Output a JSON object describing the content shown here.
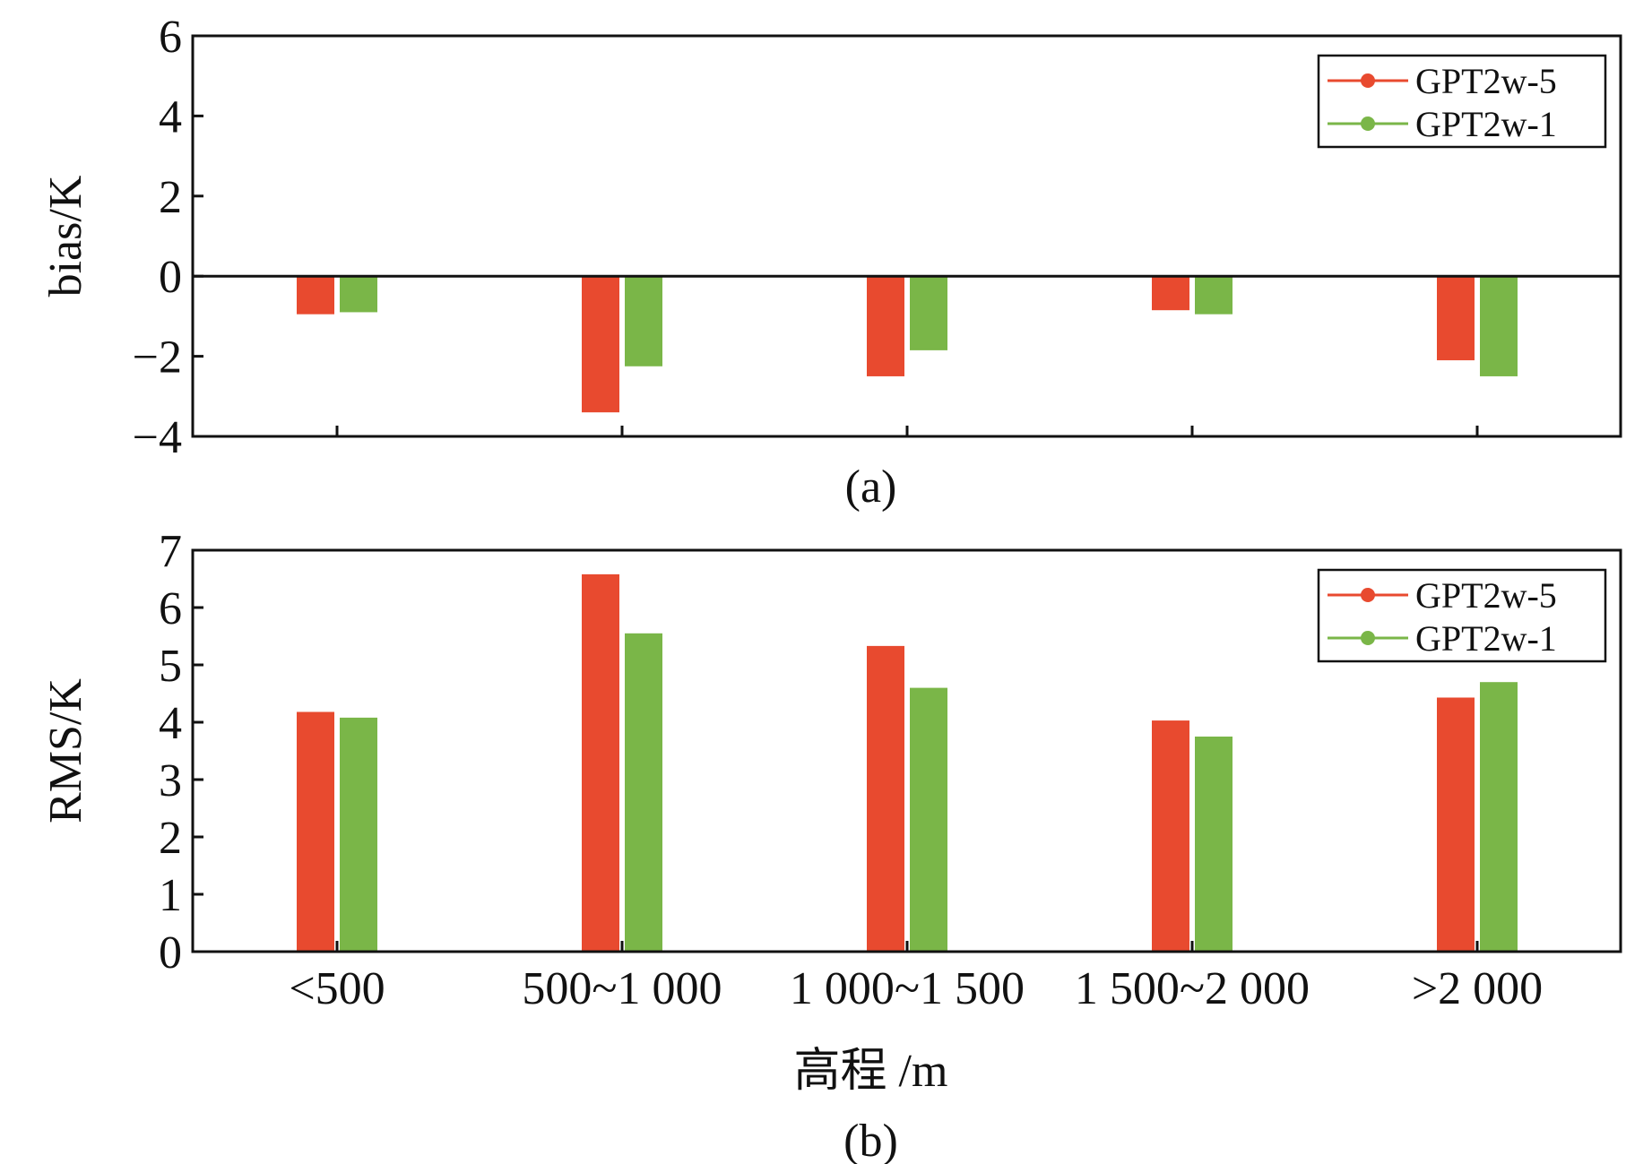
{
  "chart_data": [
    {
      "panel": "a",
      "type": "bar",
      "caption": "(a)",
      "ylabel": "bias/K",
      "ylim": [
        -4,
        6
      ],
      "yticks": [
        -4,
        -2,
        0,
        2,
        4,
        6
      ],
      "ytick_labels": [
        "−4",
        "−2",
        "0",
        "2",
        "4",
        "6"
      ],
      "categories": [
        "<500",
        "500~1 000",
        "1 000~1 500",
        "1 500~2 000",
        ">2 000"
      ],
      "show_category_labels": false,
      "zero_line": true,
      "series": [
        {
          "name": "GPT2w-5",
          "color": "#e84a2f",
          "values": [
            -0.95,
            -3.4,
            -2.5,
            -0.85,
            -2.1
          ]
        },
        {
          "name": "GPT2w-1",
          "color": "#7ab648",
          "values": [
            -0.9,
            -2.25,
            -1.85,
            -0.95,
            -2.5
          ]
        }
      ],
      "legend_position": "top-right"
    },
    {
      "panel": "b",
      "type": "bar",
      "caption": "(b)",
      "ylabel": "RMS/K",
      "xlabel": "高程 /m",
      "ylim": [
        0,
        7
      ],
      "yticks": [
        0,
        1,
        2,
        3,
        4,
        5,
        6,
        7
      ],
      "ytick_labels": [
        "0",
        "1",
        "2",
        "3",
        "4",
        "5",
        "6",
        "7"
      ],
      "categories": [
        "<500",
        "500~1 000",
        "1 000~1 500",
        "1 500~2 000",
        ">2 000"
      ],
      "show_category_labels": true,
      "zero_line": false,
      "series": [
        {
          "name": "GPT2w-5",
          "color": "#e84a2f",
          "values": [
            4.18,
            6.58,
            5.33,
            4.03,
            4.43
          ]
        },
        {
          "name": "GPT2w-1",
          "color": "#7ab648",
          "values": [
            4.08,
            5.55,
            4.6,
            3.75,
            4.7
          ]
        }
      ],
      "legend_position": "top-right"
    }
  ]
}
